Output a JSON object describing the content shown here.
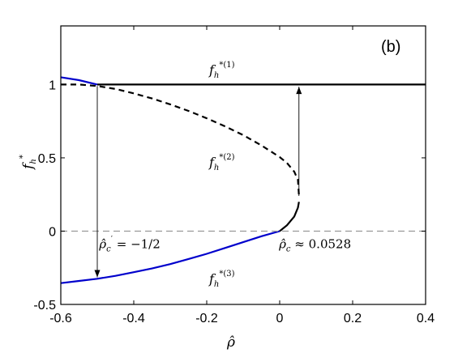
{
  "chart_data": {
    "type": "line",
    "panel_label": "(b)",
    "xlabel": "ρ̂",
    "ylabel_base": "f",
    "ylabel_sub": "h",
    "ylabel_sup": "*",
    "xlim": [
      -0.6,
      0.4
    ],
    "ylim": [
      -0.5,
      1.4
    ],
    "xticks": [
      -0.6,
      -0.4,
      -0.2,
      0,
      0.2,
      0.4
    ],
    "xtick_labels": [
      "-0.6",
      "-0.4",
      "-0.2",
      "0",
      "0.2",
      "0.4"
    ],
    "yticks": [
      -0.5,
      0,
      0.5,
      1
    ],
    "ytick_labels": [
      "-0.5",
      "0",
      "0.5",
      "1"
    ],
    "grid": false,
    "legend": "none",
    "series": [
      {
        "label_base": "f",
        "label_sub": "h",
        "label_sup": "*(1)",
        "color": "#000000",
        "style": "solid",
        "x": [
          -0.5,
          -0.3,
          -0.1,
          0.1,
          0.3,
          0.4
        ],
        "y": [
          1,
          1,
          1,
          1,
          1,
          1
        ]
      },
      {
        "label_base": "f",
        "label_sub": "h",
        "label_sup": "*(2)",
        "color": "#000000",
        "style": "dashed",
        "x": [
          -0.6,
          -0.55,
          -0.5,
          -0.45,
          -0.4,
          -0.35,
          -0.3,
          -0.25,
          -0.2,
          -0.15,
          -0.1,
          -0.05,
          0.0,
          0.02,
          0.04,
          0.05,
          0.0528
        ],
        "y": [
          1.0,
          1.0,
          0.99,
          0.97,
          0.94,
          0.905,
          0.865,
          0.82,
          0.77,
          0.715,
          0.655,
          0.585,
          0.505,
          0.465,
          0.405,
          0.35,
          0.24
        ]
      },
      {
        "label_base": "f",
        "label_sub": "h",
        "label_sup": "*(3)",
        "color": "#0000cc",
        "style": "solid",
        "x": [
          -0.6,
          -0.55,
          -0.5,
          -0.45,
          -0.4,
          -0.35,
          -0.3,
          -0.25,
          -0.2,
          -0.15,
          -0.1,
          -0.05,
          0.0
        ],
        "y": [
          -0.355,
          -0.34,
          -0.325,
          -0.305,
          -0.28,
          -0.255,
          -0.225,
          -0.19,
          -0.155,
          -0.115,
          -0.075,
          -0.035,
          0.0
        ]
      },
      {
        "label_base": "",
        "label_sub": "",
        "label_sup": "",
        "color": "#0000cc",
        "style": "solid",
        "x": [
          -0.6,
          -0.55,
          -0.5
        ],
        "y": [
          1.05,
          1.03,
          1.0
        ]
      },
      {
        "label_base": "",
        "label_sub": "",
        "label_sup": "",
        "color": "#000000",
        "style": "solid",
        "x": [
          0.0,
          0.02,
          0.04,
          0.05,
          0.0528
        ],
        "y": [
          0.0,
          0.04,
          0.1,
          0.16,
          0.2
        ]
      },
      {
        "label_base": "",
        "label_sub": "",
        "label_sup": "",
        "color": "#999999",
        "style": "dashed",
        "x": [
          -0.6,
          0.4
        ],
        "y": [
          0,
          0
        ]
      }
    ],
    "arrows": [
      {
        "x0": -0.5,
        "y0": 0.99,
        "x1": -0.5,
        "y1": -0.315
      },
      {
        "x0": 0.0528,
        "y0": 0.24,
        "x1": 0.0528,
        "y1": 0.985
      }
    ],
    "annotations": [
      {
        "base": "ρ̂",
        "sub": "c",
        "sup": "′",
        "rest": " = −1/2",
        "x": -0.495,
        "y": -0.06
      },
      {
        "base": "ρ̂",
        "sub": "c",
        "sup": "",
        "rest": " ≈ 0.0528",
        "x": -0.002,
        "y": -0.06
      }
    ]
  }
}
